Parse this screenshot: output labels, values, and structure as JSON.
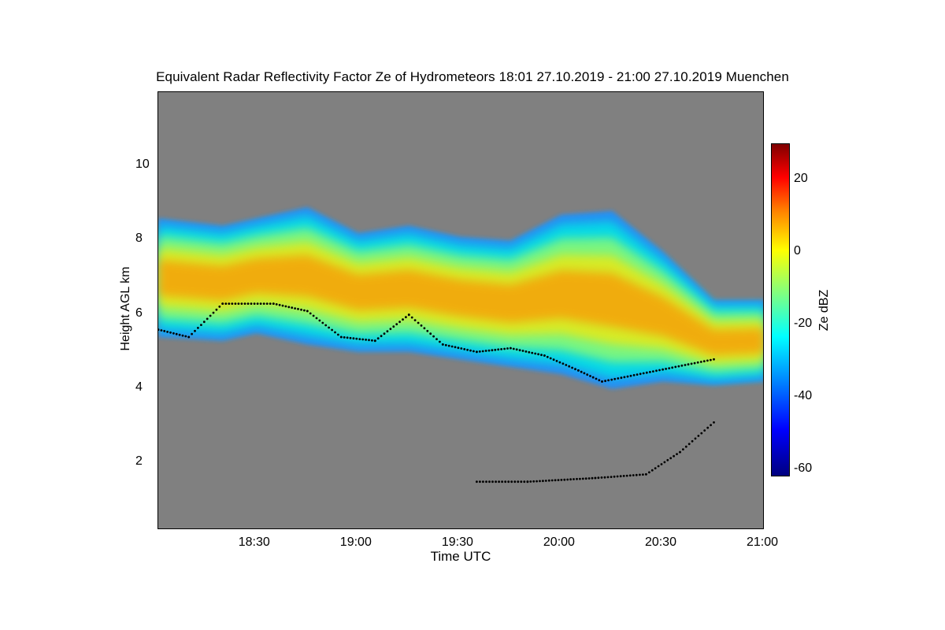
{
  "chart_data": {
    "type": "heatmap",
    "title": "Equivalent Radar Reflectivity Factor Ze of Hydrometeors    18:01 27.10.2019 - 21:00 27.10.2019 Muenchen",
    "xlabel": "Time UTC",
    "ylabel": "Height AGL km",
    "x_ticks": [
      "18:30",
      "19:00",
      "19:30",
      "20:00",
      "20:30",
      "21:00"
    ],
    "y_ticks": [
      2,
      4,
      6,
      8,
      10
    ],
    "xlim": [
      "18:01",
      "21:00"
    ],
    "ylim": [
      0.2,
      12
    ],
    "background_color": "#808080",
    "colorbar": {
      "label": "Ze dBZ",
      "ticks": [
        20,
        0,
        -20,
        -40,
        -60
      ],
      "range": [
        -62,
        30
      ],
      "colormap": "jet"
    },
    "cloud_layer": {
      "description_only": false,
      "top_km": [
        {
          "t": "18:01",
          "h": 8.6
        },
        {
          "t": "18:20",
          "h": 8.4
        },
        {
          "t": "18:30",
          "h": 8.6
        },
        {
          "t": "18:45",
          "h": 8.9
        },
        {
          "t": "19:00",
          "h": 8.2
        },
        {
          "t": "19:15",
          "h": 8.4
        },
        {
          "t": "19:30",
          "h": 8.1
        },
        {
          "t": "19:45",
          "h": 8.0
        },
        {
          "t": "20:00",
          "h": 8.7
        },
        {
          "t": "20:15",
          "h": 8.8
        },
        {
          "t": "20:30",
          "h": 7.7
        },
        {
          "t": "20:45",
          "h": 6.4
        },
        {
          "t": "21:00",
          "h": 6.4
        }
      ],
      "base_km": [
        {
          "t": "18:01",
          "h": 5.4
        },
        {
          "t": "18:15",
          "h": 5.3
        },
        {
          "t": "18:30",
          "h": 5.5
        },
        {
          "t": "18:45",
          "h": 5.2
        },
        {
          "t": "19:00",
          "h": 5.0
        },
        {
          "t": "19:15",
          "h": 5.0
        },
        {
          "t": "19:30",
          "h": 4.8
        },
        {
          "t": "19:45",
          "h": 4.6
        },
        {
          "t": "20:00",
          "h": 4.4
        },
        {
          "t": "20:15",
          "h": 4.0
        },
        {
          "t": "20:30",
          "h": 4.2
        },
        {
          "t": "20:45",
          "h": 4.1
        },
        {
          "t": "21:00",
          "h": 4.2
        }
      ],
      "max_dbz_approx": 15
    },
    "melting_layer_points_km": [
      {
        "t": "18:01",
        "h": 5.6
      },
      {
        "t": "18:10",
        "h": 5.4
      },
      {
        "t": "18:20",
        "h": 6.3
      },
      {
        "t": "18:35",
        "h": 6.3
      },
      {
        "t": "18:45",
        "h": 6.1
      },
      {
        "t": "18:55",
        "h": 5.4
      },
      {
        "t": "19:05",
        "h": 5.3
      },
      {
        "t": "19:15",
        "h": 6.0
      },
      {
        "t": "19:25",
        "h": 5.2
      },
      {
        "t": "19:35",
        "h": 5.0
      },
      {
        "t": "19:45",
        "h": 5.1
      },
      {
        "t": "19:55",
        "h": 4.9
      },
      {
        "t": "20:05",
        "h": 4.5
      },
      {
        "t": "20:12",
        "h": 4.2
      },
      {
        "t": "20:45",
        "h": 4.8
      }
    ],
    "low_cloud_points_km": [
      {
        "t": "19:35",
        "h": 1.5
      },
      {
        "t": "19:50",
        "h": 1.5
      },
      {
        "t": "20:10",
        "h": 1.6
      },
      {
        "t": "20:25",
        "h": 1.7
      },
      {
        "t": "20:35",
        "h": 2.3
      },
      {
        "t": "20:45",
        "h": 3.1
      }
    ]
  }
}
